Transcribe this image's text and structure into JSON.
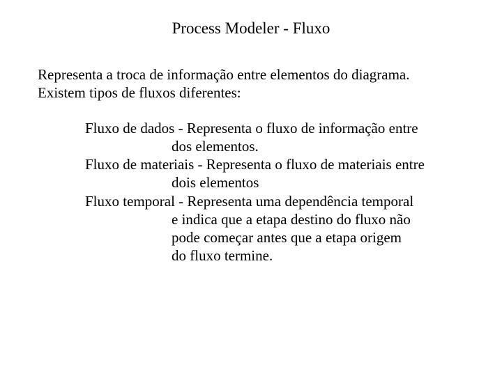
{
  "title": "Process Modeler - Fluxo",
  "intro_line1": "Representa a troca de informação entre elementos do diagrama.",
  "intro_line2": "Existem tipos de fluxos diferentes:",
  "defs": {
    "d1": {
      "head": "Fluxo de dados - Representa o fluxo de informação entre",
      "rest1": "dos elementos."
    },
    "d2": {
      "head": "Fluxo de materiais - Representa o fluxo de materiais entre",
      "rest1": "dois elementos"
    },
    "d3": {
      "head": "Fluxo temporal - Representa uma dependência temporal",
      "rest1": "e indica que a etapa destino do fluxo não",
      "rest2": "pode começar antes que a etapa origem",
      "rest3": "do fluxo termine."
    }
  },
  "colors": {
    "background": "#ffffff",
    "text": "#000000"
  },
  "typography": {
    "font_family": "Times New Roman",
    "title_fontsize": 23,
    "body_fontsize": 21
  }
}
